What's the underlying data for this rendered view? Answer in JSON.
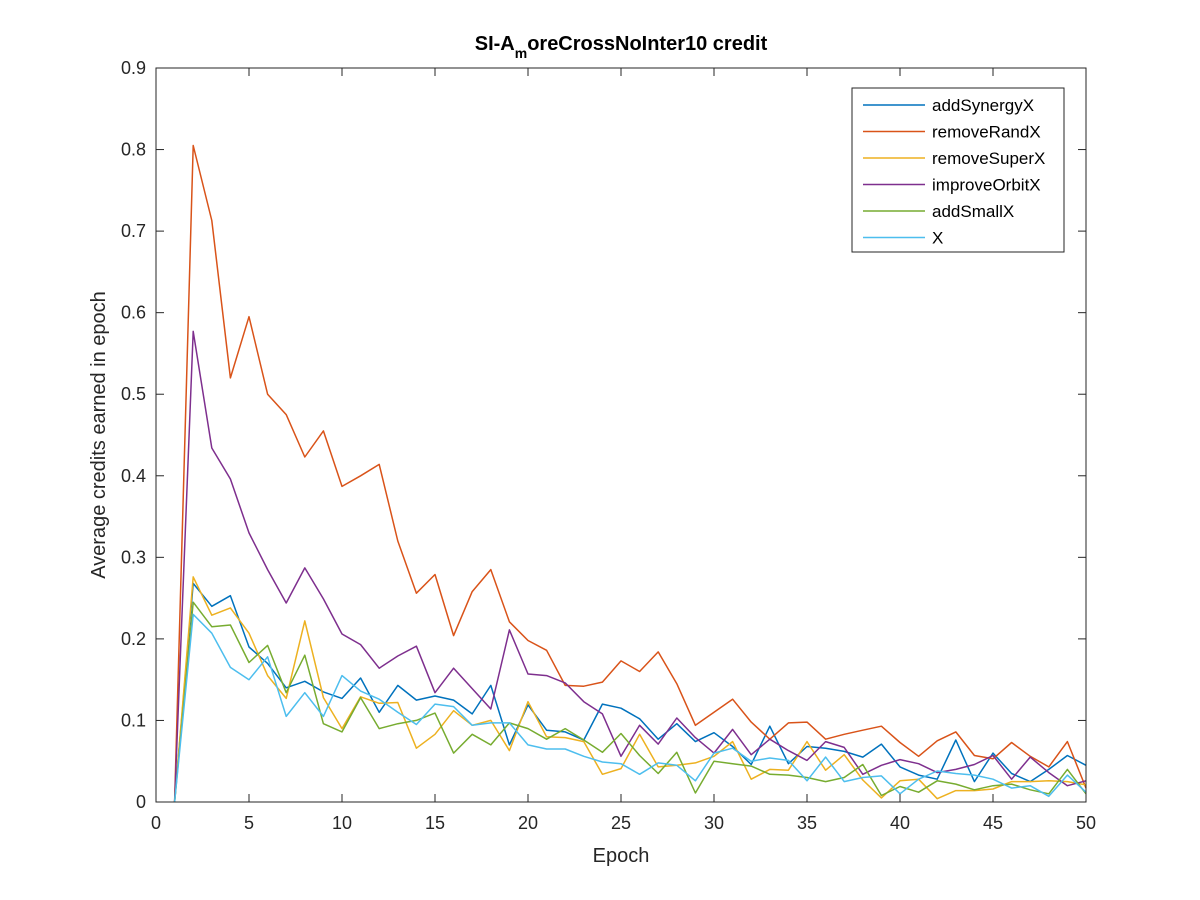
{
  "chart_data": {
    "type": "line",
    "title": {
      "main": "SI-A",
      "subscript": "m",
      "rest": "oreCrossNoInter10 credit"
    },
    "xlabel": "Epoch",
    "ylabel": "Average credits earned in epoch",
    "xlim": [
      0,
      50
    ],
    "ylim": [
      0,
      0.9
    ],
    "xticks": [
      0,
      5,
      10,
      15,
      20,
      25,
      30,
      35,
      40,
      45,
      50
    ],
    "yticks": [
      0,
      0.1,
      0.2,
      0.3,
      0.4,
      0.5,
      0.6,
      0.7,
      0.8,
      0.9
    ],
    "ytick_labels": [
      "0",
      "0.1",
      "0.2",
      "0.3",
      "0.4",
      "0.5",
      "0.6",
      "0.7",
      "0.8",
      "0.9"
    ],
    "grid": false,
    "legend_position": "top-right",
    "x": [
      1,
      2,
      3,
      4,
      5,
      6,
      7,
      8,
      9,
      10,
      11,
      12,
      13,
      14,
      15,
      16,
      17,
      18,
      19,
      20,
      21,
      22,
      23,
      24,
      25,
      26,
      27,
      28,
      29,
      30,
      31,
      32,
      33,
      34,
      35,
      36,
      37,
      38,
      39,
      40,
      41,
      42,
      43,
      44,
      45,
      46,
      47,
      48,
      49,
      50
    ],
    "series": [
      {
        "name": "addSynergyX",
        "color": "#0072BD",
        "values": [
          0,
          0.268,
          0.24,
          0.253,
          0.19,
          0.17,
          0.14,
          0.148,
          0.135,
          0.127,
          0.152,
          0.11,
          0.143,
          0.125,
          0.13,
          0.125,
          0.108,
          0.143,
          0.07,
          0.119,
          0.088,
          0.086,
          0.076,
          0.12,
          0.115,
          0.102,
          0.077,
          0.096,
          0.074,
          0.085,
          0.068,
          0.046,
          0.093,
          0.047,
          0.068,
          0.066,
          0.062,
          0.055,
          0.071,
          0.043,
          0.033,
          0.028,
          0.076,
          0.025,
          0.06,
          0.035,
          0.025,
          0.04,
          0.057,
          0.045
        ]
      },
      {
        "name": "removeRandX",
        "color": "#D95319",
        "values": [
          0,
          0.805,
          0.713,
          0.52,
          0.595,
          0.5,
          0.475,
          0.423,
          0.455,
          0.387,
          0.4,
          0.414,
          0.32,
          0.256,
          0.279,
          0.204,
          0.258,
          0.285,
          0.221,
          0.198,
          0.186,
          0.143,
          0.142,
          0.147,
          0.173,
          0.16,
          0.184,
          0.145,
          0.094,
          0.11,
          0.126,
          0.098,
          0.077,
          0.097,
          0.098,
          0.077,
          0.083,
          0.088,
          0.093,
          0.073,
          0.056,
          0.075,
          0.086,
          0.057,
          0.053,
          0.073,
          0.056,
          0.043,
          0.074,
          0.017
        ]
      },
      {
        "name": "removeSuperX",
        "color": "#EDB120",
        "values": [
          0,
          0.276,
          0.229,
          0.238,
          0.207,
          0.155,
          0.127,
          0.222,
          0.128,
          0.09,
          0.129,
          0.121,
          0.122,
          0.066,
          0.083,
          0.112,
          0.094,
          0.1,
          0.063,
          0.123,
          0.08,
          0.079,
          0.074,
          0.034,
          0.041,
          0.083,
          0.043,
          0.045,
          0.048,
          0.056,
          0.074,
          0.028,
          0.04,
          0.039,
          0.074,
          0.039,
          0.058,
          0.027,
          0.005,
          0.026,
          0.028,
          0.004,
          0.014,
          0.014,
          0.016,
          0.025,
          0.025,
          0.026,
          0.025,
          0.021
        ]
      },
      {
        "name": "improveOrbitX",
        "color": "#7E2F8E",
        "values": [
          0,
          0.577,
          0.434,
          0.396,
          0.33,
          0.285,
          0.244,
          0.287,
          0.249,
          0.206,
          0.193,
          0.164,
          0.179,
          0.191,
          0.134,
          0.164,
          0.139,
          0.114,
          0.211,
          0.157,
          0.155,
          0.146,
          0.123,
          0.108,
          0.056,
          0.094,
          0.071,
          0.103,
          0.079,
          0.06,
          0.089,
          0.058,
          0.077,
          0.063,
          0.051,
          0.074,
          0.067,
          0.034,
          0.045,
          0.052,
          0.047,
          0.036,
          0.04,
          0.046,
          0.057,
          0.028,
          0.055,
          0.036,
          0.02,
          0.026
        ]
      },
      {
        "name": "addSmallX",
        "color": "#77AC30",
        "values": [
          0,
          0.245,
          0.215,
          0.217,
          0.171,
          0.192,
          0.134,
          0.18,
          0.096,
          0.086,
          0.128,
          0.09,
          0.096,
          0.1,
          0.109,
          0.06,
          0.083,
          0.07,
          0.097,
          0.09,
          0.077,
          0.09,
          0.076,
          0.061,
          0.084,
          0.057,
          0.035,
          0.061,
          0.011,
          0.05,
          0.047,
          0.044,
          0.034,
          0.033,
          0.03,
          0.025,
          0.03,
          0.046,
          0.008,
          0.019,
          0.012,
          0.026,
          0.022,
          0.015,
          0.02,
          0.022,
          0.015,
          0.01,
          0.04,
          0.01
        ]
      },
      {
        "name": "X",
        "color": "#4DBEEE",
        "values": [
          0,
          0.23,
          0.207,
          0.165,
          0.15,
          0.178,
          0.105,
          0.134,
          0.105,
          0.155,
          0.136,
          0.126,
          0.11,
          0.095,
          0.12,
          0.117,
          0.094,
          0.097,
          0.097,
          0.07,
          0.065,
          0.065,
          0.056,
          0.049,
          0.047,
          0.034,
          0.048,
          0.045,
          0.026,
          0.06,
          0.066,
          0.05,
          0.054,
          0.051,
          0.026,
          0.055,
          0.025,
          0.03,
          0.032,
          0.01,
          0.028,
          0.038,
          0.035,
          0.033,
          0.028,
          0.017,
          0.02,
          0.007,
          0.033,
          0.012
        ]
      }
    ]
  }
}
